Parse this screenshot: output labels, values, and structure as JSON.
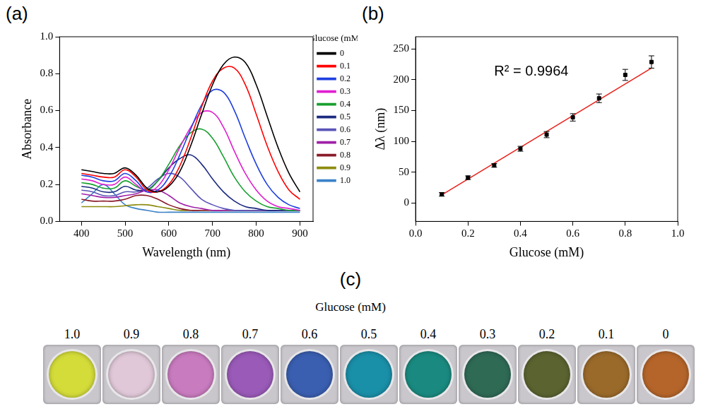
{
  "chart_data": [
    {
      "panel": "(a)",
      "type": "line",
      "x_label": "Wavelength (nm)",
      "y_label": "Absorbance",
      "xlim": [
        350,
        930
      ],
      "xticks": [
        400,
        500,
        600,
        700,
        800,
        900
      ],
      "ylim": [
        0,
        1.0
      ],
      "yticks": [
        {
          "value": 0,
          "label": "0.0"
        },
        {
          "value": 0.2,
          "label": "0.2"
        },
        {
          "value": 0.4,
          "label": "0.4"
        },
        {
          "value": 0.6,
          "label": "0.6"
        },
        {
          "value": 0.8,
          "label": "0.8"
        },
        {
          "value": 1.0,
          "label": "1.0"
        }
      ],
      "grid": false,
      "legend": "right",
      "legend_title": "Glucose (mM)",
      "x": [
        400,
        425,
        450,
        475,
        500,
        525,
        550,
        575,
        600,
        625,
        650,
        675,
        700,
        725,
        750,
        775,
        800,
        825,
        850,
        875,
        900
      ],
      "series": [
        {
          "name": "0",
          "color": "#000000",
          "values": [
            0.28,
            0.27,
            0.26,
            0.26,
            0.29,
            0.25,
            0.18,
            0.16,
            0.19,
            0.27,
            0.41,
            0.58,
            0.74,
            0.85,
            0.89,
            0.86,
            0.74,
            0.57,
            0.4,
            0.26,
            0.16
          ]
        },
        {
          "name": "0.1",
          "color": "#ff0000",
          "values": [
            0.26,
            0.25,
            0.24,
            0.24,
            0.28,
            0.24,
            0.17,
            0.16,
            0.2,
            0.3,
            0.45,
            0.62,
            0.76,
            0.83,
            0.83,
            0.74,
            0.58,
            0.41,
            0.27,
            0.17,
            0.12
          ]
        },
        {
          "name": "0.2",
          "color": "#1f3fe0",
          "values": [
            0.25,
            0.24,
            0.22,
            0.22,
            0.26,
            0.22,
            0.16,
            0.17,
            0.24,
            0.36,
            0.5,
            0.63,
            0.71,
            0.7,
            0.6,
            0.45,
            0.31,
            0.2,
            0.13,
            0.09,
            0.07
          ]
        },
        {
          "name": "0.3",
          "color": "#e020d0",
          "values": [
            0.23,
            0.22,
            0.2,
            0.2,
            0.24,
            0.2,
            0.16,
            0.19,
            0.28,
            0.4,
            0.51,
            0.59,
            0.59,
            0.51,
            0.38,
            0.26,
            0.17,
            0.11,
            0.08,
            0.07,
            0.06
          ]
        },
        {
          "name": "0.4",
          "color": "#18a030",
          "values": [
            0.21,
            0.2,
            0.18,
            0.18,
            0.22,
            0.19,
            0.17,
            0.22,
            0.31,
            0.41,
            0.48,
            0.5,
            0.45,
            0.35,
            0.24,
            0.16,
            0.11,
            0.08,
            0.07,
            0.06,
            0.06
          ]
        },
        {
          "name": "0.5",
          "color": "#1c2a80",
          "values": [
            0.19,
            0.18,
            0.16,
            0.16,
            0.19,
            0.17,
            0.17,
            0.22,
            0.29,
            0.34,
            0.36,
            0.31,
            0.23,
            0.16,
            0.11,
            0.08,
            0.07,
            0.06,
            0.06,
            0.06,
            0.06
          ]
        },
        {
          "name": "0.6",
          "color": "#5a55b8",
          "values": [
            0.17,
            0.16,
            0.14,
            0.14,
            0.16,
            0.16,
            0.18,
            0.23,
            0.26,
            0.24,
            0.18,
            0.12,
            0.09,
            0.07,
            0.06,
            0.06,
            0.06,
            0.06,
            0.06,
            0.06,
            0.06
          ]
        },
        {
          "name": "0.7",
          "color": "#a020a8",
          "values": [
            0.15,
            0.14,
            0.13,
            0.13,
            0.14,
            0.15,
            0.17,
            0.17,
            0.14,
            0.1,
            0.08,
            0.07,
            0.06,
            0.06,
            0.06,
            0.06,
            0.06,
            0.06,
            0.06,
            0.06,
            0.06
          ]
        },
        {
          "name": "0.8",
          "color": "#8b1a2a",
          "values": [
            0.12,
            0.11,
            0.11,
            0.11,
            0.12,
            0.14,
            0.14,
            0.12,
            0.09,
            0.07,
            0.06,
            0.06,
            0.06,
            0.06,
            0.06,
            0.06,
            0.06,
            0.06,
            0.06,
            0.06,
            0.06
          ]
        },
        {
          "name": "0.9",
          "color": "#8c8c10",
          "values": [
            0.08,
            0.08,
            0.08,
            0.08,
            0.085,
            0.09,
            0.09,
            0.08,
            0.07,
            0.06,
            0.06,
            0.06,
            0.06,
            0.06,
            0.06,
            0.06,
            0.06,
            0.06,
            0.06,
            0.06,
            0.06
          ]
        },
        {
          "name": "1.0",
          "color": "#3b82c8",
          "values": [
            0.1,
            0.15,
            0.2,
            0.15,
            0.09,
            0.07,
            0.06,
            0.05,
            0.05,
            0.05,
            0.05,
            0.05,
            0.05,
            0.05,
            0.05,
            0.05,
            0.05,
            0.05,
            0.05,
            0.05,
            0.05
          ]
        }
      ]
    },
    {
      "panel": "(b)",
      "type": "scatter",
      "x_label": "Glucose (mM)",
      "y_label": "Δλ (nm)",
      "xlim": [
        0,
        1.0
      ],
      "xticks": [
        {
          "value": 0,
          "label": "0.0"
        },
        {
          "value": 0.2,
          "label": "0.2"
        },
        {
          "value": 0.4,
          "label": "0.4"
        },
        {
          "value": 0.6,
          "label": "0.6"
        },
        {
          "value": 0.8,
          "label": "0.8"
        },
        {
          "value": 1.0,
          "label": "1.0"
        }
      ],
      "ylim": [
        -30,
        270
      ],
      "yticks": [
        0,
        50,
        100,
        150,
        200,
        250
      ],
      "grid": false,
      "x": [
        0.1,
        0.2,
        0.3,
        0.4,
        0.5,
        0.6,
        0.7,
        0.8,
        0.9
      ],
      "values": [
        14,
        41,
        61,
        88,
        111,
        139,
        170,
        208,
        229
      ],
      "errors": [
        3,
        3,
        3,
        4,
        5,
        6,
        7,
        9,
        10
      ],
      "color": "#000000",
      "marker": "square",
      "fit_line": {
        "x": [
          0.1,
          0.9
        ],
        "values": [
          13,
          219
        ],
        "color": "#e8221c",
        "line_style": "solid"
      },
      "annotations": [
        "R² = 0.9964"
      ]
    }
  ],
  "wells_panel": {
    "panel": "(c)",
    "title": "Glucose (mM)",
    "labels": [
      "1.0",
      "0.9",
      "0.8",
      "0.7",
      "0.6",
      "0.5",
      "0.4",
      "0.3",
      "0.2",
      "0.1",
      "0"
    ],
    "colors": [
      "#d4dc3a",
      "#e0c8d8",
      "#c97bbf",
      "#9a5ab8",
      "#3a5fb0",
      "#1a8fa8",
      "#1a8a80",
      "#2f6a55",
      "#5b6330",
      "#9a6a2a",
      "#b5652a"
    ]
  }
}
